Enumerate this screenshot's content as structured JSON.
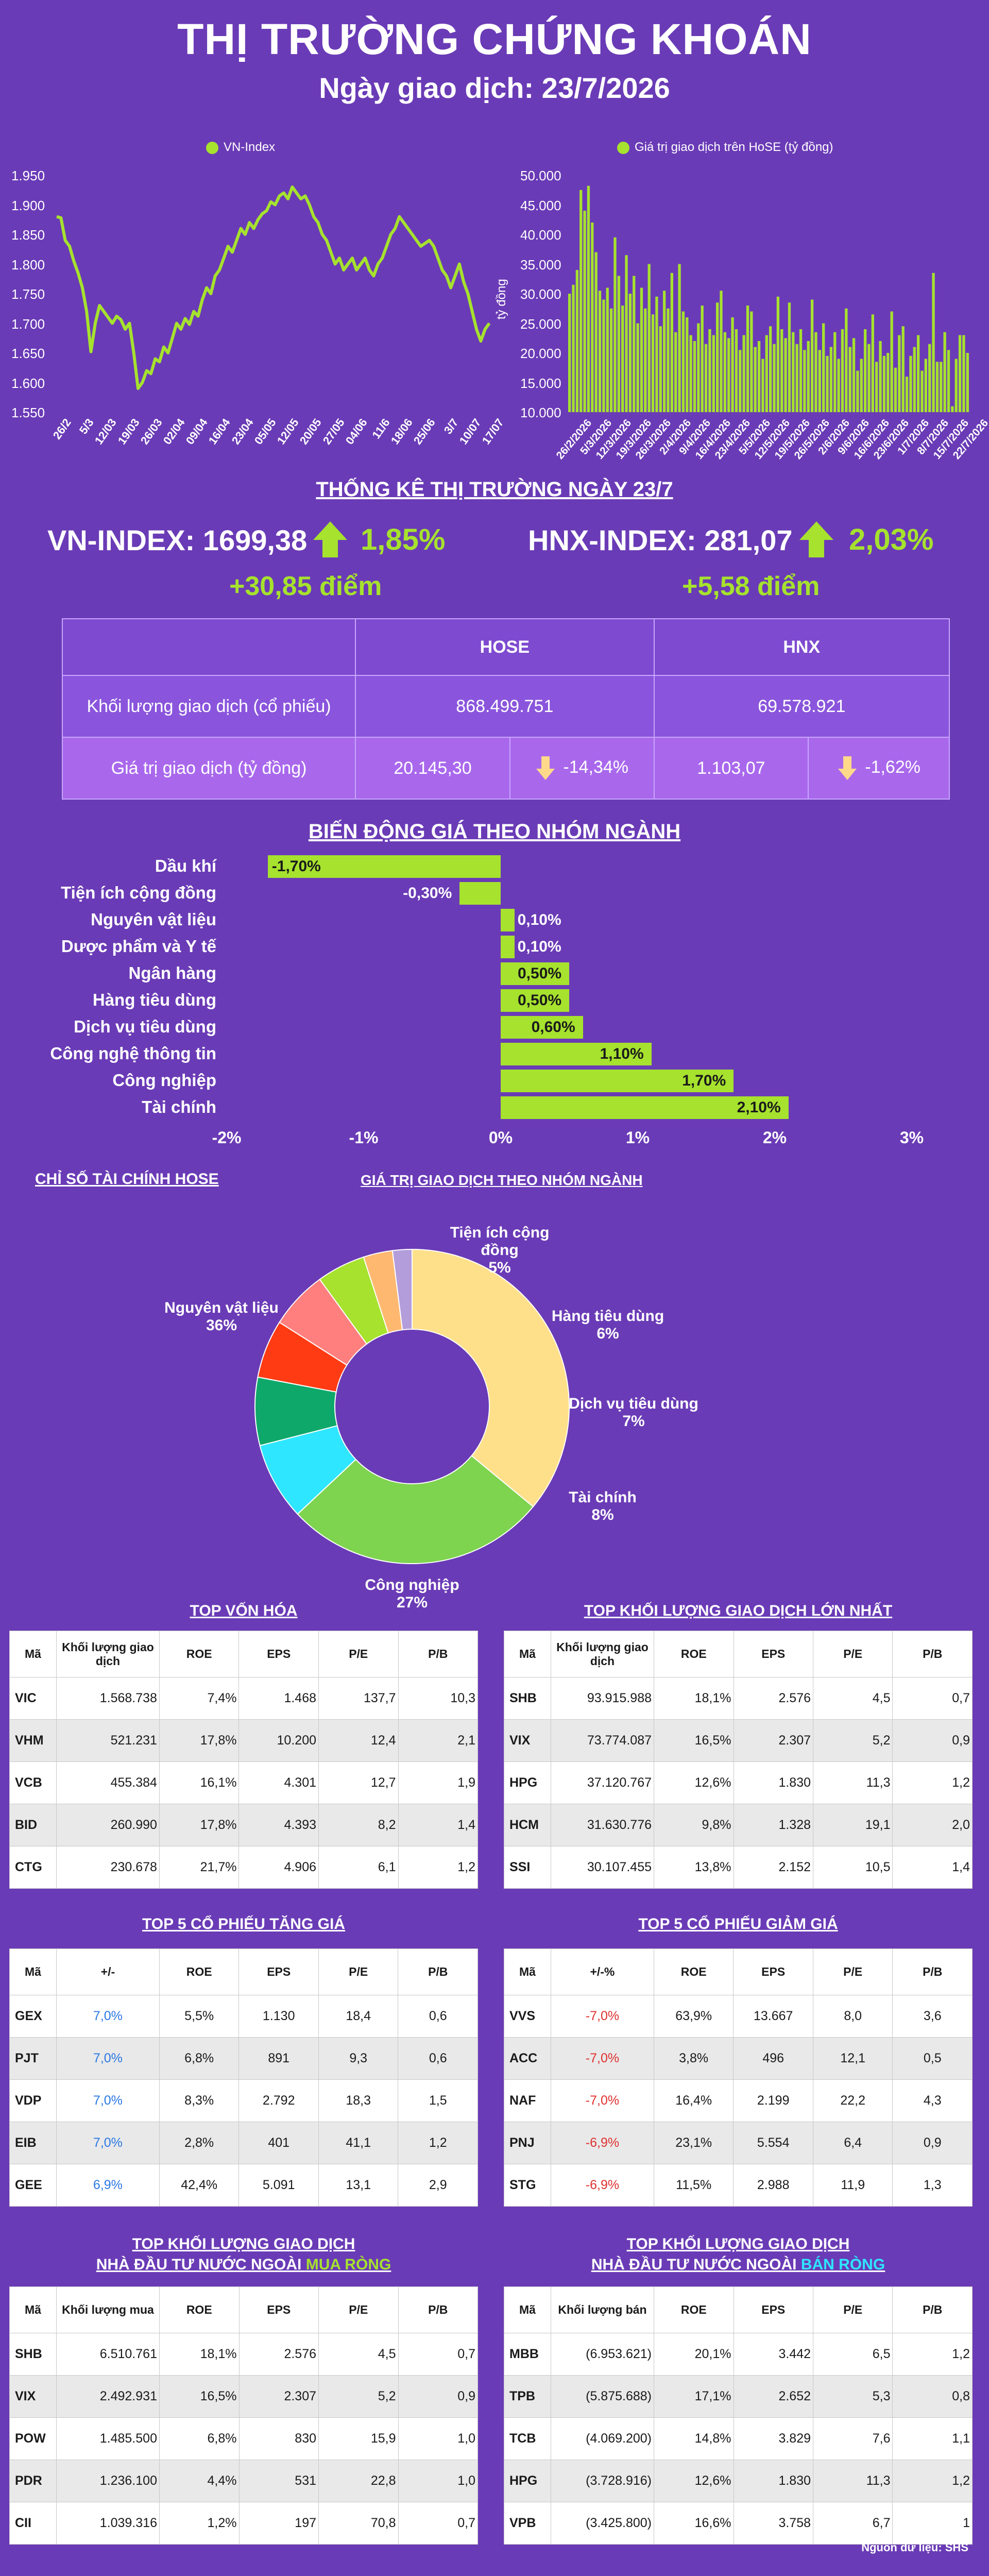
{
  "header": {
    "title": "THỊ TRƯỜNG CHỨNG KHOÁN",
    "subtitle": "Ngày giao dịch: 23/7/2026"
  },
  "colors": {
    "background": "#6a3bb6",
    "accent": "#a6e22e",
    "decline_arrow": "#ffd98a",
    "pos_text": "#2b78e4",
    "neg_text": "#e03030"
  },
  "chart_data": [
    {
      "type": "line",
      "legend": "VN-Index",
      "legend_position": "top",
      "ylim": [
        1550,
        1950
      ],
      "yticks": [
        "1.950",
        "1.900",
        "1.850",
        "1.800",
        "1.750",
        "1.700",
        "1.650",
        "1.600",
        "1.550"
      ],
      "xticks": [
        "26/2",
        "5/3",
        "12/03",
        "19/03",
        "26/03",
        "02/04",
        "09/04",
        "16/04",
        "23/04",
        "05/05",
        "12/05",
        "20/05",
        "27/05",
        "04/06",
        "11/6",
        "18/06",
        "25/06",
        "3/7",
        "10/07",
        "17/07"
      ],
      "values": [
        1880,
        1878,
        1840,
        1830,
        1805,
        1785,
        1760,
        1720,
        1652,
        1700,
        1730,
        1720,
        1710,
        1700,
        1712,
        1706,
        1690,
        1700,
        1650,
        1590,
        1600,
        1620,
        1615,
        1640,
        1635,
        1660,
        1650,
        1675,
        1700,
        1690,
        1708,
        1698,
        1720,
        1712,
        1740,
        1760,
        1750,
        1780,
        1790,
        1810,
        1830,
        1820,
        1840,
        1860,
        1850,
        1870,
        1860,
        1875,
        1885,
        1890,
        1905,
        1900,
        1915,
        1920,
        1910,
        1930,
        1920,
        1910,
        1915,
        1900,
        1880,
        1870,
        1850,
        1840,
        1820,
        1800,
        1810,
        1790,
        1800,
        1810,
        1790,
        1800,
        1810,
        1790,
        1780,
        1800,
        1810,
        1830,
        1850,
        1860,
        1880,
        1870,
        1860,
        1850,
        1840,
        1830,
        1835,
        1840,
        1830,
        1810,
        1790,
        1780,
        1760,
        1780,
        1800,
        1770,
        1750,
        1720,
        1690,
        1670,
        1690,
        1700
      ]
    },
    {
      "type": "bar",
      "legend": "Giá trị giao dịch trên HoSE (tỷ đồng)",
      "ylabel": "tỷ đồng",
      "ylim": [
        10000,
        50000
      ],
      "yticks": [
        "50.000",
        "45.000",
        "40.000",
        "35.000",
        "30.000",
        "25.000",
        "20.000",
        "15.000",
        "10.000"
      ],
      "xticks": [
        "26/2/2026",
        "5/3/2026",
        "12/3/2026",
        "19/3/2026",
        "26/3/2026",
        "2/4/2026",
        "9/4/2026",
        "16/4/2026",
        "23/4/2026",
        "5/5/2026",
        "12/5/2026",
        "19/5/2026",
        "26/5/2026",
        "2/6/2026",
        "9/6/2026",
        "16/6/2026",
        "23/6/2026",
        "1/7/2026",
        "8/7/2026",
        "15/7/2026",
        "22/7/2026"
      ],
      "values": [
        30000,
        31500,
        34000,
        47500,
        44000,
        48200,
        42000,
        37000,
        30500,
        29000,
        31000,
        27500,
        39500,
        33000,
        28000,
        36500,
        30000,
        33000,
        25000,
        31000,
        27500,
        35000,
        26500,
        29500,
        24500,
        30500,
        27500,
        33500,
        23500,
        35000,
        27000,
        26000,
        23000,
        22000,
        25000,
        28000,
        21500,
        24000,
        23000,
        28500,
        30500,
        23500,
        22500,
        26000,
        24000,
        20500,
        23000,
        28000,
        27000,
        21000,
        22000,
        19000,
        23000,
        24500,
        21500,
        29500,
        24000,
        22500,
        28500,
        23500,
        21500,
        24000,
        20500,
        22000,
        29000,
        23500,
        20500,
        25000,
        19500,
        21000,
        23500,
        19000,
        24000,
        27500,
        21000,
        22500,
        17000,
        19000,
        24000,
        21500,
        26500,
        18500,
        22000,
        19500,
        20000,
        27000,
        17500,
        23000,
        24500,
        16000,
        19500,
        21000,
        23000,
        17000,
        19000,
        21500,
        33500,
        18500,
        18500,
        23500,
        20500,
        11000,
        19000,
        23000,
        23000,
        20000
      ]
    },
    {
      "type": "bar",
      "title": "BIẾN ĐỘNG GIÁ THEO NHÓM NGÀNH",
      "orientation": "horizontal",
      "categories": [
        "Dầu khí",
        "Tiện ích cộng đồng",
        "Nguyên vật liệu",
        "Dược phẩm và Y tế",
        "Ngân hàng",
        "Hàng tiêu dùng",
        "Dịch vụ tiêu dùng",
        "Công nghệ thông tin",
        "Công nghiệp",
        "Tài chính"
      ],
      "values": [
        -1.7,
        -0.3,
        0.1,
        0.1,
        0.5,
        0.5,
        0.6,
        1.1,
        1.7,
        2.1
      ],
      "labels": [
        "-1,70%",
        "-0,30%",
        "0,10%",
        "0,10%",
        "0,50%",
        "0,50%",
        "0,60%",
        "1,10%",
        "1,70%",
        "2,10%"
      ],
      "xlim": [
        -2,
        3
      ],
      "xticks": [
        "-2%",
        "-1%",
        "0%",
        "1%",
        "2%",
        "3%"
      ]
    },
    {
      "type": "pie",
      "title": "GIÁ TRỊ GIAO DỊCH THEO NHÓM NGÀNH",
      "slices": [
        {
          "name": "Nguyên vật liệu",
          "value": 36,
          "label": "36%",
          "color": "#ffe08a"
        },
        {
          "name": "Công nghiệp",
          "value": 27,
          "label": "27%",
          "color": "#7ed34f"
        },
        {
          "name": "Tài chính",
          "value": 8,
          "label": "8%",
          "color": "#2ee6ff"
        },
        {
          "name": "Dịch vụ tiêu dùng",
          "value": 7,
          "label": "7%",
          "color": "#0ea86a"
        },
        {
          "name": "",
          "value": 6,
          "label": "",
          "color": "#ff3b14"
        },
        {
          "name": "Hàng tiêu dùng",
          "value": 6,
          "label": "6%",
          "color": "#ff7f7f"
        },
        {
          "name": "Tiện ích cộng đồng",
          "value": 5,
          "label": "5%",
          "color": "#a6e22e"
        },
        {
          "name": "",
          "value": 3,
          "label": "",
          "color": "#ffb870"
        },
        {
          "name": "",
          "value": 2,
          "label": "",
          "color": "#b39ddb"
        }
      ]
    }
  ],
  "stats": {
    "title": "THỐNG KÊ THỊ TRƯỜNG NGÀY 23/7",
    "vn_label": "VN-INDEX: 1699,38",
    "vn_pct": "1,85%",
    "vn_pts": "+30,85 điểm",
    "hnx_label": "HNX-INDEX: 281,07",
    "hnx_pct": "2,03%",
    "hnx_pts": "+5,58 điểm"
  },
  "market_table": {
    "col_hose": "HOSE",
    "col_hnx": "HNX",
    "row1_label": "Khối lượng giao dịch (cổ phiếu)",
    "row1_hose": "868.499.751",
    "row1_hnx": "69.578.921",
    "row2_label": "Giá trị giao dịch (tỷ đồng)",
    "row2_hose": "20.145,30",
    "row2_hose_chg": "-14,34%",
    "row2_hnx": "1.103,07",
    "row2_hnx_chg": "-1,62%"
  },
  "fin_title": "CHỈ SỐ TÀI CHÍNH HOSE",
  "tables": {
    "top_cap": {
      "title": "TOP VỐN HÓA",
      "headers": [
        "Mã",
        "Khối lượng giao dịch",
        "ROE",
        "EPS",
        "P/E",
        "P/B"
      ],
      "rows": [
        [
          "VIC",
          "1.568.738",
          "7,4%",
          "1.468",
          "137,7",
          "10,3"
        ],
        [
          "VHM",
          "521.231",
          "17,8%",
          "10.200",
          "12,4",
          "2,1"
        ],
        [
          "VCB",
          "455.384",
          "16,1%",
          "4.301",
          "12,7",
          "1,9"
        ],
        [
          "BID",
          "260.990",
          "17,8%",
          "4.393",
          "8,2",
          "1,4"
        ],
        [
          "CTG",
          "230.678",
          "21,7%",
          "4.906",
          "6,1",
          "1,2"
        ]
      ]
    },
    "top_volume": {
      "title": "TOP KHỐI LƯỢNG GIAO DỊCH LỚN NHẤT",
      "headers": [
        "Mã",
        "Khối lượng giao dịch",
        "ROE",
        "EPS",
        "P/E",
        "P/B"
      ],
      "rows": [
        [
          "SHB",
          "93.915.988",
          "18,1%",
          "2.576",
          "4,5",
          "0,7"
        ],
        [
          "VIX",
          "73.774.087",
          "16,5%",
          "2.307",
          "5,2",
          "0,9"
        ],
        [
          "HPG",
          "37.120.767",
          "12,6%",
          "1.830",
          "11,3",
          "1,2"
        ],
        [
          "HCM",
          "31.630.776",
          "9,8%",
          "1.328",
          "19,1",
          "2,0"
        ],
        [
          "SSI",
          "30.107.455",
          "13,8%",
          "2.152",
          "10,5",
          "1,4"
        ]
      ]
    },
    "top_gain": {
      "title": "TOP 5 CỔ PHIẾU TĂNG GIÁ",
      "headers": [
        "Mã",
        "+/-",
        "ROE",
        "EPS",
        "P/E",
        "P/B"
      ],
      "rows": [
        [
          "GEX",
          "7,0%",
          "5,5%",
          "1.130",
          "18,4",
          "0,6"
        ],
        [
          "PJT",
          "7,0%",
          "6,8%",
          "891",
          "9,3",
          "0,6"
        ],
        [
          "VDP",
          "7,0%",
          "8,3%",
          "2.792",
          "18,3",
          "1,5"
        ],
        [
          "EIB",
          "7,0%",
          "2,8%",
          "401",
          "41,1",
          "1,2"
        ],
        [
          "GEE",
          "6,9%",
          "42,4%",
          "5.091",
          "13,1",
          "2,9"
        ]
      ]
    },
    "top_loss": {
      "title": "TOP 5 CỔ PHIẾU GIẢM GIÁ",
      "headers": [
        "Mã",
        "+/-%",
        "ROE",
        "EPS",
        "P/E",
        "P/B"
      ],
      "rows": [
        [
          "VVS",
          "-7,0%",
          "63,9%",
          "13.667",
          "8,0",
          "3,6"
        ],
        [
          "ACC",
          "-7,0%",
          "3,8%",
          "496",
          "12,1",
          "0,5"
        ],
        [
          "NAF",
          "-7,0%",
          "16,4%",
          "2.199",
          "22,2",
          "4,3"
        ],
        [
          "PNJ",
          "-6,9%",
          "23,1%",
          "5.554",
          "6,4",
          "0,9"
        ],
        [
          "STG",
          "-6,9%",
          "11,5%",
          "2.988",
          "11,9",
          "1,3"
        ]
      ]
    },
    "foreign_buy": {
      "title_l1": "TOP KHỐI LƯỢNG GIAO DỊCH",
      "title_l2a": "NHÀ ĐẦU TƯ NƯỚC NGOÀI ",
      "title_l2b": "MUA RÒNG",
      "headers": [
        "Mã",
        "Khối lượng mua",
        "ROE",
        "EPS",
        "P/E",
        "P/B"
      ],
      "rows": [
        [
          "SHB",
          "6.510.761",
          "18,1%",
          "2.576",
          "4,5",
          "0,7"
        ],
        [
          "VIX",
          "2.492.931",
          "16,5%",
          "2.307",
          "5,2",
          "0,9"
        ],
        [
          "POW",
          "1.485.500",
          "6,8%",
          "830",
          "15,9",
          "1,0"
        ],
        [
          "PDR",
          "1.236.100",
          "4,4%",
          "531",
          "22,8",
          "1,0"
        ],
        [
          "CII",
          "1.039.316",
          "1,2%",
          "197",
          "70,8",
          "0,7"
        ]
      ]
    },
    "foreign_sell": {
      "title_l1": "TOP KHỐI LƯỢNG GIAO DỊCH",
      "title_l2a": "NHÀ ĐẦU TƯ NƯỚC NGOÀI ",
      "title_l2b": "BÁN RÒNG",
      "headers": [
        "Mã",
        "Khối lượng bán",
        "ROE",
        "EPS",
        "P/E",
        "P/B"
      ],
      "rows": [
        [
          "MBB",
          "(6.953.621)",
          "20,1%",
          "3.442",
          "6,5",
          "1,2"
        ],
        [
          "TPB",
          "(5.875.688)",
          "17,1%",
          "2.652",
          "5,3",
          "0,8"
        ],
        [
          "TCB",
          "(4.069.200)",
          "14,8%",
          "3.829",
          "7,6",
          "1,1"
        ],
        [
          "HPG",
          "(3.728.916)",
          "12,6%",
          "1.830",
          "11,3",
          "1,2"
        ],
        [
          "VPB",
          "(3.425.800)",
          "16,6%",
          "3.758",
          "6,7",
          "1"
        ]
      ]
    }
  },
  "source": "Nguồn dữ liệu: SHS"
}
